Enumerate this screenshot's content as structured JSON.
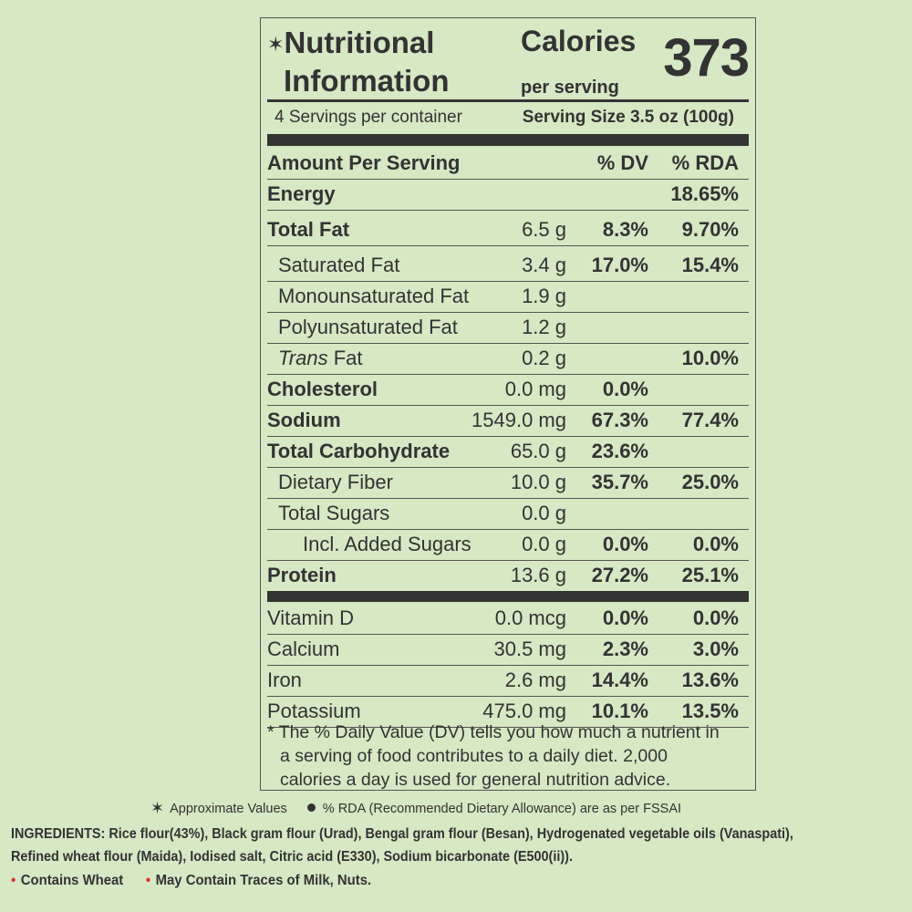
{
  "header": {
    "title_star": "✶",
    "title_line1": "Nutritional",
    "title_line2": "Information",
    "calories_label": "Calories",
    "calories_sub": "per serving",
    "calories_value": "373"
  },
  "serving": {
    "servings_per_container": "4 Servings per container",
    "serving_size": "Serving Size 3.5 oz (100g)"
  },
  "columns": {
    "amount": "Amount Per Serving",
    "dv": "% DV",
    "rda": "% RDA"
  },
  "rows": [
    {
      "name": "Energy",
      "amount": "",
      "dv": "",
      "rda": "18.65%"
    },
    {
      "name": "Total Fat",
      "amount": "6.5 g",
      "dv": "8.3%",
      "rda": "9.70%"
    },
    {
      "name": "Saturated Fat",
      "amount": "3.4 g",
      "dv": "17.0%",
      "rda": "15.4%"
    },
    {
      "name": "Monounsaturated Fat",
      "amount": "1.9 g",
      "dv": "",
      "rda": ""
    },
    {
      "name": "Polyunsaturated Fat",
      "amount": "1.2 g",
      "dv": "",
      "rda": ""
    },
    {
      "name_italic": "Trans",
      "name_rest": " Fat",
      "amount": "0.2 g",
      "dv": "",
      "rda": "10.0%"
    },
    {
      "name": "Cholesterol",
      "amount": "0.0 mg",
      "dv": "0.0%",
      "rda": ""
    },
    {
      "name": "Sodium",
      "amount": "1549.0 mg",
      "dv": "67.3%",
      "rda": "77.4%"
    },
    {
      "name": "Total Carbohydrate",
      "amount": "65.0 g",
      "dv": "23.6%",
      "rda": ""
    },
    {
      "name": "Dietary Fiber",
      "amount": "10.0 g",
      "dv": "35.7%",
      "rda": "25.0%"
    },
    {
      "name": "Total Sugars",
      "amount": "0.0 g",
      "dv": "",
      "rda": ""
    },
    {
      "name": "Incl. Added Sugars",
      "amount": "0.0 g",
      "dv": "0.0%",
      "rda": "0.0%"
    },
    {
      "name": "Protein",
      "amount": "13.6 g",
      "dv": "27.2%",
      "rda": "25.1%"
    }
  ],
  "vitamins": [
    {
      "name": "Vitamin D",
      "amount": "0.0 mcg",
      "dv": "0.0%",
      "rda": "0.0%"
    },
    {
      "name": "Calcium",
      "amount": "30.5 mg",
      "dv": "2.3%",
      "rda": "3.0%"
    },
    {
      "name": "Iron",
      "amount": "2.6 mg",
      "dv": "14.4%",
      "rda": "13.6%"
    },
    {
      "name": "Potassium",
      "amount": "475.0 mg",
      "dv": "10.1%",
      "rda": "13.5%"
    }
  ],
  "footnote": {
    "line1": "* The % Daily Value (DV) tells you how much a nutrient in",
    "line2": "a serving of food contributes to a daily diet. 2,000",
    "line3": "calories a day is used for general nutrition advice."
  },
  "legend": {
    "star_symbol": "✶",
    "approx": "Approximate Values",
    "rda_note": "% RDA (Recommended Dietary Allowance) are as per FSSAI"
  },
  "ingredients": {
    "line1": "INGREDIENTS: Rice flour(43%), Black gram flour (Urad), Bengal gram flour (Besan), Hydrogenated vegetable oils (Vanaspati),",
    "line2": "Refined wheat flour (Maida), Iodised salt, Citric acid (E330), Sodium bicarbonate (E500(ii))."
  },
  "allergens": {
    "bullet": "•",
    "item1": "Contains Wheat",
    "item2": "May Contain Traces of Milk, Nuts."
  },
  "colors": {
    "background": "#d6e8c4",
    "text": "#333333",
    "allergen_bullet": "#e03030"
  }
}
